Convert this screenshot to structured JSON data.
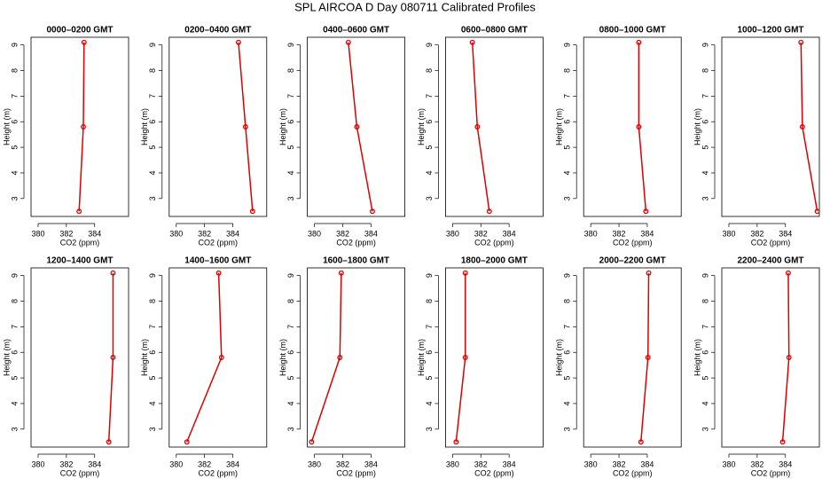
{
  "title": "SPL AIRCOA D  Day 080711  Calibrated Profiles",
  "chart_data": [
    {
      "type": "line",
      "title": "0000–0200 GMT",
      "x_label": "CO2 (ppm)",
      "y_label": "Height (m)",
      "xlim": [
        379.5,
        386.4
      ],
      "ylim": [
        2.3,
        9.3
      ],
      "xticks": [
        380,
        382,
        384
      ],
      "yticks": [
        3,
        4,
        5,
        6,
        7,
        8,
        9
      ],
      "series": [
        {
          "color": "#dd0000",
          "x": [
            382.9,
            383.2,
            383.25
          ],
          "values": [
            2.5,
            5.8,
            9.1
          ]
        }
      ]
    },
    {
      "type": "line",
      "title": "0200–0400 GMT",
      "x_label": "CO2 (ppm)",
      "y_label": "Height (m)",
      "xlim": [
        379.5,
        386.4
      ],
      "ylim": [
        2.3,
        9.3
      ],
      "xticks": [
        380,
        382,
        384
      ],
      "yticks": [
        3,
        4,
        5,
        6,
        7,
        8,
        9
      ],
      "series": [
        {
          "color": "#dd0000",
          "x": [
            385.4,
            384.9,
            384.4
          ],
          "values": [
            2.5,
            5.8,
            9.1
          ]
        }
      ]
    },
    {
      "type": "line",
      "title": "0400–0600 GMT",
      "x_label": "CO2 (ppm)",
      "y_label": "Height (m)",
      "xlim": [
        379.5,
        386.4
      ],
      "ylim": [
        2.3,
        9.3
      ],
      "xticks": [
        380,
        382,
        384
      ],
      "yticks": [
        3,
        4,
        5,
        6,
        7,
        8,
        9
      ],
      "series": [
        {
          "color": "#dd0000",
          "x": [
            384.1,
            383.0,
            382.4
          ],
          "values": [
            2.5,
            5.8,
            9.1
          ]
        }
      ]
    },
    {
      "type": "line",
      "title": "0600–0800 GMT",
      "x_label": "CO2 (ppm)",
      "y_label": "Height (m)",
      "xlim": [
        379.5,
        386.4
      ],
      "ylim": [
        2.3,
        9.3
      ],
      "xticks": [
        380,
        382,
        384
      ],
      "yticks": [
        3,
        4,
        5,
        6,
        7,
        8,
        9
      ],
      "series": [
        {
          "color": "#dd0000",
          "x": [
            382.6,
            381.75,
            381.4
          ],
          "values": [
            2.5,
            5.8,
            9.1
          ]
        }
      ]
    },
    {
      "type": "line",
      "title": "0800–1000 GMT",
      "x_label": "CO2 (ppm)",
      "y_label": "Height (m)",
      "xlim": [
        379.5,
        386.4
      ],
      "ylim": [
        2.3,
        9.3
      ],
      "xticks": [
        380,
        382,
        384
      ],
      "yticks": [
        3,
        4,
        5,
        6,
        7,
        8,
        9
      ],
      "series": [
        {
          "color": "#dd0000",
          "x": [
            383.9,
            383.4,
            383.4
          ],
          "values": [
            2.5,
            5.8,
            9.1
          ]
        }
      ]
    },
    {
      "type": "line",
      "title": "1000–1200 GMT",
      "x_label": "CO2 (ppm)",
      "y_label": "Height (m)",
      "xlim": [
        379.5,
        386.4
      ],
      "ylim": [
        2.3,
        9.3
      ],
      "xticks": [
        380,
        382,
        384
      ],
      "yticks": [
        3,
        4,
        5,
        6,
        7,
        8,
        9
      ],
      "series": [
        {
          "color": "#dd0000",
          "x": [
            386.25,
            385.2,
            385.1
          ],
          "values": [
            2.5,
            5.8,
            9.1
          ]
        }
      ]
    },
    {
      "type": "line",
      "title": "1200–1400 GMT",
      "x_label": "CO2 (ppm)",
      "y_label": "Height (m)",
      "xlim": [
        379.5,
        386.4
      ],
      "ylim": [
        2.3,
        9.3
      ],
      "xticks": [
        380,
        382,
        384
      ],
      "yticks": [
        3,
        4,
        5,
        6,
        7,
        8,
        9
      ],
      "series": [
        {
          "color": "#dd0000",
          "x": [
            385.0,
            385.3,
            385.3
          ],
          "values": [
            2.5,
            5.8,
            9.1
          ]
        }
      ]
    },
    {
      "type": "line",
      "title": "1400–1600 GMT",
      "x_label": "CO2 (ppm)",
      "y_label": "Height (m)",
      "xlim": [
        379.5,
        386.4
      ],
      "ylim": [
        2.3,
        9.3
      ],
      "xticks": [
        380,
        382,
        384
      ],
      "yticks": [
        3,
        4,
        5,
        6,
        7,
        8,
        9
      ],
      "series": [
        {
          "color": "#dd0000",
          "x": [
            380.75,
            383.2,
            383.0
          ],
          "values": [
            2.5,
            5.8,
            9.1
          ]
        }
      ]
    },
    {
      "type": "line",
      "title": "1600–1800 GMT",
      "x_label": "CO2 (ppm)",
      "y_label": "Height (m)",
      "xlim": [
        379.5,
        386.4
      ],
      "ylim": [
        2.3,
        9.3
      ],
      "xticks": [
        380,
        382,
        384
      ],
      "yticks": [
        3,
        4,
        5,
        6,
        7,
        8,
        9
      ],
      "series": [
        {
          "color": "#dd0000",
          "x": [
            379.8,
            381.8,
            381.9
          ],
          "values": [
            2.5,
            5.8,
            9.1
          ]
        }
      ]
    },
    {
      "type": "line",
      "title": "1800–2000 GMT",
      "x_label": "CO2 (ppm)",
      "y_label": "Height (m)",
      "xlim": [
        379.5,
        386.4
      ],
      "ylim": [
        2.3,
        9.3
      ],
      "xticks": [
        380,
        382,
        384
      ],
      "yticks": [
        3,
        4,
        5,
        6,
        7,
        8,
        9
      ],
      "series": [
        {
          "color": "#dd0000",
          "x": [
            380.25,
            380.9,
            380.9
          ],
          "values": [
            2.5,
            5.8,
            9.1
          ]
        }
      ]
    },
    {
      "type": "line",
      "title": "2000–2200 GMT",
      "x_label": "CO2 (ppm)",
      "y_label": "Height (m)",
      "xlim": [
        379.5,
        386.4
      ],
      "ylim": [
        2.3,
        9.3
      ],
      "xticks": [
        380,
        382,
        384
      ],
      "yticks": [
        3,
        4,
        5,
        6,
        7,
        8,
        9
      ],
      "series": [
        {
          "color": "#dd0000",
          "x": [
            383.55,
            384.05,
            384.1
          ],
          "values": [
            2.5,
            5.8,
            9.1
          ]
        }
      ]
    },
    {
      "type": "line",
      "title": "2200–2400 GMT",
      "x_label": "CO2 (ppm)",
      "y_label": "Height (m)",
      "xlim": [
        379.5,
        386.4
      ],
      "ylim": [
        2.3,
        9.3
      ],
      "xticks": [
        380,
        382,
        384
      ],
      "yticks": [
        3,
        4,
        5,
        6,
        7,
        8,
        9
      ],
      "series": [
        {
          "color": "#dd0000",
          "x": [
            383.8,
            384.25,
            384.2
          ],
          "values": [
            2.5,
            5.8,
            9.1
          ]
        }
      ]
    }
  ]
}
